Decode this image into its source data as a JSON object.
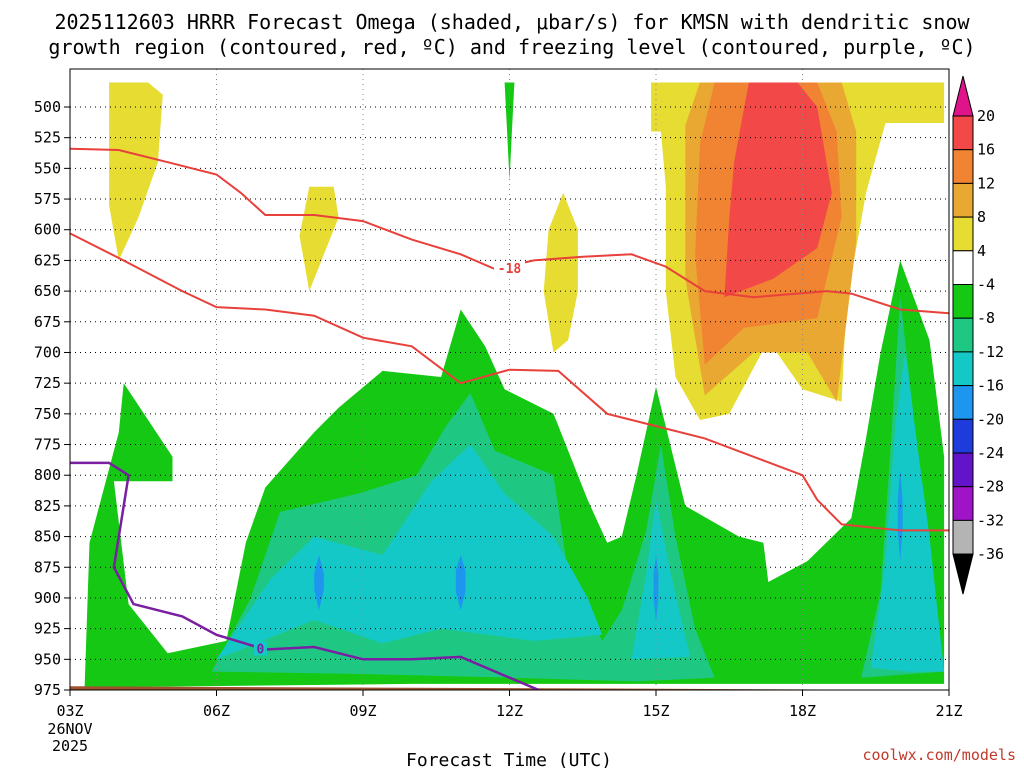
{
  "chart_data": {
    "type": "contour",
    "title_line1": "2025112603 HRRR Forecast Omega (shaded, μbar/s) for KMSN with dendritic snow",
    "title_line2": "growth region (contoured, red, ºC) and freezing level (contoured, purple, ºC)",
    "xlabel": "Forecast Time (UTC)",
    "x_ticks": [
      {
        "hour": 3,
        "label": "03Z"
      },
      {
        "hour": 6,
        "label": "06Z"
      },
      {
        "hour": 9,
        "label": "09Z"
      },
      {
        "hour": 12,
        "label": "12Z"
      },
      {
        "hour": 15,
        "label": "15Z"
      },
      {
        "hour": 18,
        "label": "18Z"
      },
      {
        "hour": 21,
        "label": "21Z"
      }
    ],
    "x_date_line1": "26NOV",
    "x_date_line2": "2025",
    "xlim_hours": [
      3,
      21
    ],
    "y_ticks": [
      "500",
      "525",
      "550",
      "575",
      "600",
      "625",
      "650",
      "675",
      "700",
      "725",
      "750",
      "775",
      "800",
      "825",
      "850",
      "875",
      "900",
      "925",
      "950",
      "975"
    ],
    "ylim_hpa": [
      480,
      985
    ],
    "colorbar": {
      "labels": [
        "20",
        "16",
        "12",
        "8",
        "4",
        "-4",
        "-8",
        "-12",
        "-16",
        "-20",
        "-24",
        "-28",
        "-32",
        "-36"
      ],
      "bins": [
        {
          "range": "20+",
          "color": "#e0148a"
        },
        {
          "range": "16 to 20",
          "color": "#f24848"
        },
        {
          "range": "12 to 16",
          "color": "#f08432"
        },
        {
          "range": "8 to 12",
          "color": "#e8a832"
        },
        {
          "range": "4 to 8",
          "color": "#e6dc32"
        },
        {
          "range": "-4 to 4",
          "color": "#ffffff"
        },
        {
          "range": "-8 to -4",
          "color": "#14c814"
        },
        {
          "range": "-12 to -8",
          "color": "#1ec882"
        },
        {
          "range": "-16 to -12",
          "color": "#14c8c8"
        },
        {
          "range": "-20 to -16",
          "color": "#1e96f0"
        },
        {
          "range": "-24 to -20",
          "color": "#1e3cdc"
        },
        {
          "range": "-28 to -24",
          "color": "#6414c8"
        },
        {
          "range": "-32 to -28",
          "color": "#a014c8"
        },
        {
          "range": "-36 to -32",
          "color": "#b4b4b4"
        },
        {
          "range": "< -36",
          "color": "#000000"
        }
      ]
    },
    "omega_regions": [
      {
        "name": "upward-motion-green",
        "value": "-4 to -8",
        "color": "#14c814",
        "points": [
          [
            3.3,
            973
          ],
          [
            3.4,
            855
          ],
          [
            4.0,
            765
          ],
          [
            4.1,
            725
          ],
          [
            5.1,
            785
          ],
          [
            5.1,
            805
          ],
          [
            3.9,
            805
          ],
          [
            4.2,
            905
          ],
          [
            5.0,
            945
          ],
          [
            6.2,
            935
          ],
          [
            6.6,
            855
          ],
          [
            7.0,
            810
          ],
          [
            8.0,
            765
          ],
          [
            8.5,
            745
          ],
          [
            9.4,
            715
          ],
          [
            10.6,
            720
          ],
          [
            11.0,
            665
          ],
          [
            11.5,
            695
          ],
          [
            11.9,
            730
          ],
          [
            12.9,
            750
          ],
          [
            13.6,
            820
          ],
          [
            14.0,
            855
          ],
          [
            14.3,
            850
          ],
          [
            14.6,
            800
          ],
          [
            15.0,
            728
          ],
          [
            15.6,
            825
          ],
          [
            16.7,
            850
          ],
          [
            17.2,
            855
          ],
          [
            17.3,
            887
          ],
          [
            18.1,
            870
          ],
          [
            19.0,
            835
          ],
          [
            19.3,
            770
          ],
          [
            19.6,
            700
          ],
          [
            20.0,
            625
          ],
          [
            20.6,
            690
          ],
          [
            20.9,
            785
          ],
          [
            20.9,
            970
          ],
          [
            10.0,
            970
          ]
        ]
      },
      {
        "name": "upward-motion-teal",
        "value": "-8 to -12",
        "color": "#1ec882",
        "points": [
          [
            5.9,
            960
          ],
          [
            6.7,
            900
          ],
          [
            7.3,
            830
          ],
          [
            8.9,
            815
          ],
          [
            10.1,
            800
          ],
          [
            10.7,
            760
          ],
          [
            11.2,
            733
          ],
          [
            11.7,
            780
          ],
          [
            12.9,
            800
          ],
          [
            13.2,
            880
          ],
          [
            13.9,
            935
          ],
          [
            14.3,
            910
          ],
          [
            14.8,
            845
          ],
          [
            15.1,
            775
          ],
          [
            15.4,
            850
          ],
          [
            15.8,
            925
          ],
          [
            16.2,
            965
          ],
          [
            14.6,
            968
          ],
          [
            12.0,
            965
          ],
          [
            9.0,
            962
          ]
        ]
      },
      {
        "name": "upward-motion-teal-east",
        "value": "-8 to -12",
        "color": "#1ec882",
        "points": [
          [
            19.2,
            965
          ],
          [
            19.6,
            895
          ],
          [
            19.8,
            780
          ],
          [
            20.0,
            655
          ],
          [
            20.3,
            760
          ],
          [
            20.9,
            960
          ]
        ]
      },
      {
        "name": "upward-motion-cyan",
        "value": "-12 to -16",
        "color": "#14c8c8",
        "points": [
          [
            6.0,
            950
          ],
          [
            7.1,
            885
          ],
          [
            8.0,
            850
          ],
          [
            9.4,
            865
          ],
          [
            10.4,
            805
          ],
          [
            11.2,
            775
          ],
          [
            11.9,
            815
          ],
          [
            12.9,
            850
          ],
          [
            13.6,
            900
          ],
          [
            13.9,
            930
          ],
          [
            12.5,
            935
          ],
          [
            10.6,
            925
          ],
          [
            9.4,
            937
          ],
          [
            8.0,
            918
          ]
        ]
      },
      {
        "name": "upward-motion-cyan-15z",
        "value": "-12 to -16",
        "color": "#14c8c8",
        "points": [
          [
            14.5,
            950
          ],
          [
            14.8,
            880
          ],
          [
            15.0,
            820
          ],
          [
            15.3,
            880
          ],
          [
            15.7,
            948
          ]
        ]
      },
      {
        "name": "upward-motion-cyan-east",
        "value": "-12 to -16",
        "color": "#14c8c8",
        "points": [
          [
            19.4,
            957
          ],
          [
            19.7,
            870
          ],
          [
            19.9,
            760
          ],
          [
            20.1,
            700
          ],
          [
            20.3,
            760
          ],
          [
            20.6,
            850
          ],
          [
            20.9,
            960
          ],
          [
            20.2,
            960
          ]
        ]
      },
      {
        "name": "upward-motion-blue-08z",
        "value": "-16 to -20",
        "color": "#1e96f0",
        "points": [
          [
            8.0,
            893
          ],
          [
            8.0,
            880
          ],
          [
            8.1,
            865
          ],
          [
            8.2,
            880
          ],
          [
            8.2,
            893
          ],
          [
            8.1,
            910
          ]
        ]
      },
      {
        "name": "upward-motion-blue-11z",
        "value": "-16 to -20",
        "color": "#1e96f0",
        "points": [
          [
            10.9,
            895
          ],
          [
            10.9,
            878
          ],
          [
            11.0,
            865
          ],
          [
            11.1,
            878
          ],
          [
            11.1,
            895
          ],
          [
            11.0,
            910
          ]
        ]
      },
      {
        "name": "upward-motion-blue-15z",
        "value": "-16 to -20",
        "color": "#1e96f0",
        "points": [
          [
            14.95,
            900
          ],
          [
            14.95,
            880
          ],
          [
            15.0,
            865
          ],
          [
            15.05,
            880
          ],
          [
            15.05,
            900
          ],
          [
            15.0,
            920
          ]
        ]
      },
      {
        "name": "upward-motion-blue-20z",
        "value": "-16 to -20",
        "color": "#1e96f0",
        "points": [
          [
            19.95,
            845
          ],
          [
            19.95,
            820
          ],
          [
            20.0,
            795
          ],
          [
            20.05,
            820
          ],
          [
            20.05,
            845
          ],
          [
            20.0,
            870
          ]
        ]
      },
      {
        "name": "upward-motion-green-12z",
        "value": "-4 to -8",
        "color": "#14c814",
        "points": [
          [
            11.9,
            480
          ],
          [
            12.1,
            480
          ],
          [
            12.05,
            520
          ],
          [
            12.0,
            560
          ],
          [
            11.95,
            520
          ]
        ]
      },
      {
        "name": "sinking-yellow-north",
        "value": "4 to 8",
        "color": "#e6dc32",
        "points": [
          [
            3.8,
            580
          ],
          [
            3.8,
            480
          ],
          [
            4.6,
            480
          ],
          [
            4.9,
            490
          ],
          [
            4.8,
            545
          ],
          [
            4.4,
            590
          ],
          [
            4.0,
            625
          ]
        ]
      },
      {
        "name": "sinking-yellow-08z",
        "value": "4 to 8",
        "color": "#e6dc32",
        "points": [
          [
            7.7,
            605
          ],
          [
            7.9,
            565
          ],
          [
            8.4,
            565
          ],
          [
            8.5,
            590
          ],
          [
            8.2,
            620
          ],
          [
            7.9,
            650
          ]
        ]
      },
      {
        "name": "sinking-yellow-13z",
        "value": "4 to 8",
        "color": "#e6dc32",
        "points": [
          [
            12.7,
            650
          ],
          [
            12.8,
            600
          ],
          [
            13.1,
            570
          ],
          [
            13.4,
            600
          ],
          [
            13.4,
            650
          ],
          [
            13.2,
            690
          ],
          [
            12.9,
            700
          ]
        ]
      },
      {
        "name": "sinking-yellow-main",
        "value": "4 to 8",
        "color": "#e6dc32",
        "points": [
          [
            14.9,
            480
          ],
          [
            20.9,
            480
          ],
          [
            20.9,
            513
          ],
          [
            19.7,
            513
          ],
          [
            19.3,
            570
          ],
          [
            18.9,
            660
          ],
          [
            18.8,
            740
          ],
          [
            18.0,
            730
          ],
          [
            17.3,
            690
          ],
          [
            16.5,
            750
          ],
          [
            15.9,
            755
          ],
          [
            15.4,
            720
          ],
          [
            15.2,
            650
          ],
          [
            15.2,
            565
          ],
          [
            15.1,
            520
          ],
          [
            14.9,
            520
          ]
        ]
      },
      {
        "name": "sinking-gold",
        "value": "8 to 12",
        "color": "#e8a832",
        "points": [
          [
            15.6,
            515
          ],
          [
            15.9,
            480
          ],
          [
            18.8,
            480
          ],
          [
            19.1,
            520
          ],
          [
            19.1,
            610
          ],
          [
            18.7,
            740
          ],
          [
            18.1,
            700
          ],
          [
            17.0,
            700
          ],
          [
            16.0,
            735
          ],
          [
            15.6,
            640
          ]
        ]
      },
      {
        "name": "sinking-orange",
        "value": "12 to 16",
        "color": "#f08432",
        "points": [
          [
            15.9,
            530
          ],
          [
            16.2,
            480
          ],
          [
            18.3,
            480
          ],
          [
            18.7,
            520
          ],
          [
            18.8,
            590
          ],
          [
            18.3,
            672
          ],
          [
            16.8,
            680
          ],
          [
            16.0,
            710
          ],
          [
            15.8,
            620
          ]
        ]
      },
      {
        "name": "sinking-red",
        "value": "16 to 20",
        "color": "#f24848",
        "points": [
          [
            16.6,
            545
          ],
          [
            16.9,
            480
          ],
          [
            17.9,
            480
          ],
          [
            18.3,
            500
          ],
          [
            18.6,
            570
          ],
          [
            18.3,
            615
          ],
          [
            17.4,
            640
          ],
          [
            16.4,
            655
          ],
          [
            16.5,
            590
          ]
        ]
      }
    ],
    "dgz_contours": [
      {
        "name": "minus-12-contour",
        "points": [
          [
            3.0,
            603
          ],
          [
            4.0,
            623
          ],
          [
            5.3,
            650
          ],
          [
            6.0,
            663
          ],
          [
            7.0,
            665
          ],
          [
            8.0,
            670
          ],
          [
            9.0,
            688
          ],
          [
            10.0,
            695
          ],
          [
            11.0,
            725
          ],
          [
            12.0,
            714
          ],
          [
            13.0,
            715
          ],
          [
            14.0,
            750
          ],
          [
            15.0,
            760
          ],
          [
            16.0,
            770
          ],
          [
            17.0,
            785
          ],
          [
            18.0,
            800
          ],
          [
            18.3,
            820
          ],
          [
            18.8,
            840
          ],
          [
            19.5,
            843
          ],
          [
            20.0,
            845
          ],
          [
            21.0,
            845
          ]
        ]
      },
      {
        "name": "minus-18-contour",
        "label": "-18",
        "points": [
          [
            3.0,
            534
          ],
          [
            4.0,
            535
          ],
          [
            5.0,
            545
          ],
          [
            6.0,
            555
          ],
          [
            6.5,
            570
          ],
          [
            7.0,
            588
          ],
          [
            8.0,
            588
          ],
          [
            9.0,
            593
          ],
          [
            10.0,
            608
          ],
          [
            11.0,
            620
          ],
          [
            11.7,
            632
          ],
          [
            12.5,
            625
          ],
          [
            13.5,
            622
          ],
          [
            14.5,
            620
          ],
          [
            15.2,
            630
          ],
          [
            16.0,
            650
          ],
          [
            17.0,
            655
          ],
          [
            18.5,
            650
          ],
          [
            19.0,
            652
          ],
          [
            20.0,
            665
          ],
          [
            21.0,
            668
          ]
        ]
      }
    ],
    "freezing_level": {
      "name": "zero-contour",
      "label": "0",
      "points": [
        [
          3.0,
          790
        ],
        [
          3.8,
          790
        ],
        [
          4.2,
          800
        ],
        [
          3.9,
          875
        ],
        [
          4.3,
          905
        ],
        [
          5.3,
          915
        ],
        [
          6.0,
          930
        ],
        [
          7.0,
          942
        ],
        [
          8.0,
          940
        ],
        [
          9.0,
          950
        ],
        [
          10.0,
          950
        ],
        [
          11.0,
          948
        ],
        [
          12.0,
          965
        ],
        [
          12.6,
          975
        ]
      ]
    },
    "labels": [
      {
        "name": "minus-18-label",
        "text": "-18",
        "hour": 12.0,
        "hpa": 632
      },
      {
        "name": "zero-label",
        "text": "0",
        "hour": 6.9,
        "hpa": 942
      }
    ],
    "surface_terrain": {
      "top_hpa_at_start": 972,
      "top_hpa_at_end": 975,
      "color": "#a0522d"
    },
    "credit": "coolwx.com/models"
  }
}
